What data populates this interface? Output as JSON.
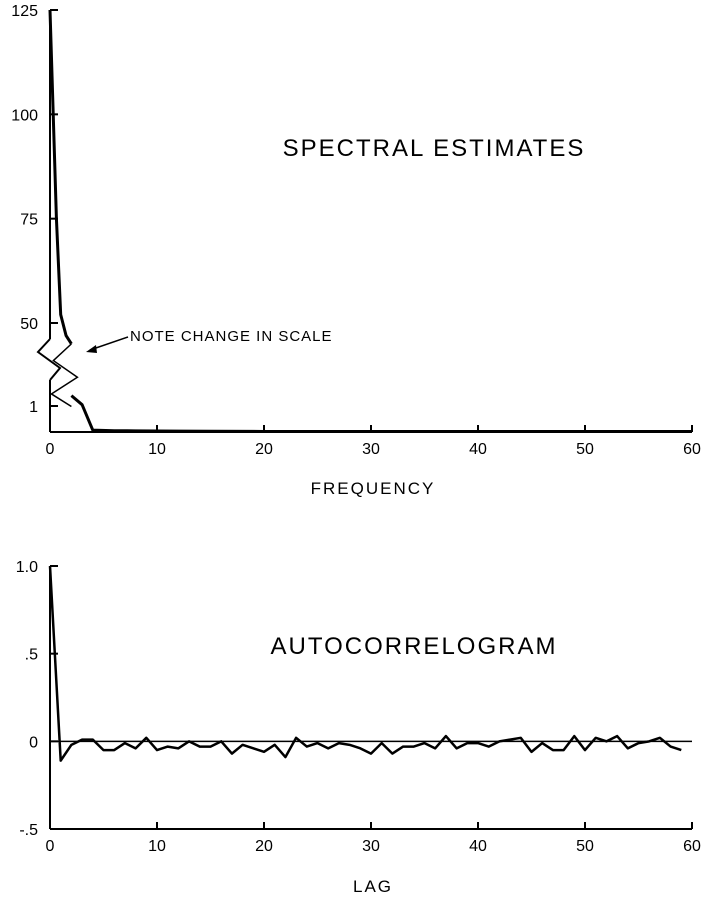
{
  "chart_data": [
    {
      "type": "line",
      "title": "SPECTRAL ESTIMATES",
      "xlabel": "FREQUENCY",
      "ylabel": "",
      "xlim": [
        0,
        60
      ],
      "xticks": [
        0,
        10,
        20,
        30,
        40,
        50,
        60
      ],
      "xtick_labels": [
        "0",
        "10",
        "20",
        "30",
        "40",
        "50",
        "60"
      ],
      "ylim": [
        0,
        125
      ],
      "yticks": [
        50,
        75,
        100,
        125
      ],
      "ytick_labels": [
        "50",
        "75",
        "100",
        "125"
      ],
      "lower_axis_label": "1",
      "annotation": "NOTE CHANGE IN SCALE",
      "axis_break": true,
      "grid": false,
      "series": [
        {
          "x": [
            0,
            0.3,
            0.6,
            1,
            1.5,
            2,
            3,
            4,
            6,
            8,
            10,
            12,
            15,
            20,
            25,
            30,
            35,
            40,
            45,
            50,
            55,
            60
          ],
          "y_upper_scale": [
            125,
            100,
            75,
            52,
            47,
            45
          ],
          "y_lower_scale": [
            null,
            null,
            null,
            null,
            null,
            1.4,
            1.05,
            0.07,
            0.05,
            0.045,
            0.04,
            0.035,
            0.03,
            0.02,
            0.02,
            0.02,
            0.02,
            0.02,
            0.02,
            0.02,
            0.02,
            0.02
          ]
        }
      ]
    },
    {
      "type": "line",
      "title": "AUTOCORRELOGRAM",
      "xlabel": "LAG",
      "ylabel": "",
      "xlim": [
        0,
        60
      ],
      "xticks": [
        0,
        10,
        20,
        30,
        40,
        50,
        60
      ],
      "xtick_labels": [
        "0",
        "10",
        "20",
        "30",
        "40",
        "50",
        "60"
      ],
      "ylim": [
        -0.5,
        1.0
      ],
      "yticks": [
        -0.5,
        0,
        0.5,
        1.0
      ],
      "ytick_labels": [
        "-.5",
        "0",
        ".5",
        "1.0"
      ],
      "reference_line": 0,
      "grid": false,
      "series": [
        {
          "x": [
            0,
            1,
            2,
            3,
            4,
            5,
            6,
            7,
            8,
            9,
            10,
            11,
            12,
            13,
            14,
            15,
            16,
            17,
            18,
            19,
            20,
            21,
            22,
            23,
            24,
            25,
            26,
            27,
            28,
            29,
            30,
            31,
            32,
            33,
            34,
            35,
            36,
            37,
            38,
            39,
            40,
            41,
            42,
            43,
            44,
            45,
            46,
            47,
            48,
            49,
            50,
            51,
            52,
            53,
            54,
            55,
            56,
            57,
            58,
            59
          ],
          "y": [
            1.0,
            -0.11,
            -0.02,
            0.01,
            0.01,
            -0.05,
            -0.05,
            -0.01,
            -0.04,
            0.02,
            -0.05,
            -0.03,
            -0.04,
            0.0,
            -0.03,
            -0.03,
            0.0,
            -0.07,
            -0.02,
            -0.04,
            -0.06,
            -0.02,
            -0.09,
            0.02,
            -0.03,
            -0.01,
            -0.04,
            -0.01,
            -0.02,
            -0.04,
            -0.07,
            -0.01,
            -0.07,
            -0.03,
            -0.03,
            -0.01,
            -0.04,
            0.03,
            -0.04,
            -0.01,
            -0.01,
            -0.03,
            0.0,
            0.01,
            0.02,
            -0.06,
            -0.01,
            -0.05,
            -0.05,
            0.03,
            -0.05,
            0.02,
            0.0,
            0.03,
            -0.04,
            -0.01,
            0.0,
            0.02,
            -0.03,
            -0.05
          ]
        }
      ]
    }
  ]
}
